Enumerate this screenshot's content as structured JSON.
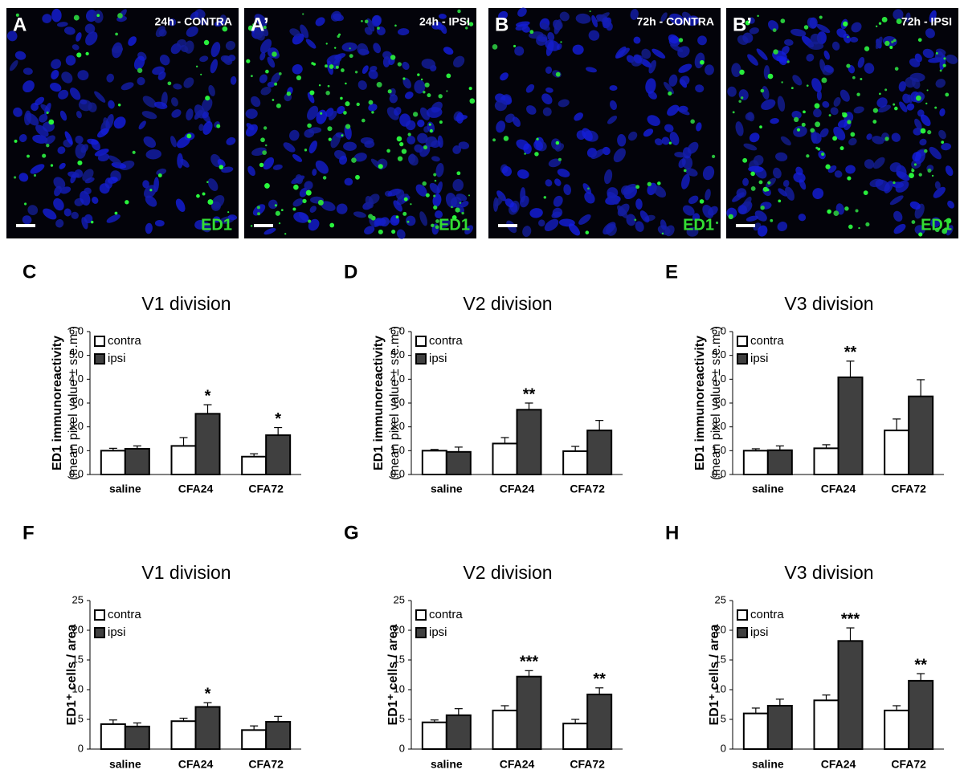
{
  "images": [
    {
      "letter": "A",
      "caption": "24h - CONTRA",
      "stain": "ED1"
    },
    {
      "letter": "A’",
      "caption": "24h - IPSI",
      "stain": "ED1"
    },
    {
      "letter": "B",
      "caption": "72h - CONTRA",
      "stain": "ED1"
    },
    {
      "letter": "B’",
      "caption": "72h - IPSI",
      "stain": "ED1"
    }
  ],
  "chart_data": [
    {
      "type": "bar",
      "letter": "C",
      "title": "V1 division",
      "ylabel": [
        "ED1 immunoreactivity",
        "(mean pixel value ± s.e.m.)"
      ],
      "categories": [
        "saline",
        "CFA24",
        "CFA72"
      ],
      "series": [
        {
          "name": "contra",
          "color": "#ffffff",
          "values": [
            1.0,
            1.2,
            0.75
          ],
          "errors": [
            0.1,
            0.35,
            0.12
          ]
        },
        {
          "name": "ipsi",
          "color": "#404040",
          "values": [
            1.08,
            2.55,
            1.65
          ],
          "errors": [
            0.12,
            0.38,
            0.32
          ],
          "annotations": [
            null,
            "*",
            "*"
          ]
        }
      ],
      "ylim": [
        0,
        6
      ],
      "yticks": [
        {
          "value": 0,
          "label": "0.0"
        },
        {
          "value": 1,
          "label": "1.0"
        },
        {
          "value": 2,
          "label": "2.0"
        },
        {
          "value": 3,
          "label": "3.0"
        },
        {
          "value": 4,
          "label": "4.0"
        },
        {
          "value": 5,
          "label": "5.0"
        },
        {
          "value": 6,
          "label": "6.0"
        }
      ]
    },
    {
      "type": "bar",
      "letter": "D",
      "title": "V2 division",
      "ylabel": [
        "ED1 immunoreactivity",
        "(mean pixel value ± s.e.m.)"
      ],
      "categories": [
        "saline",
        "CFA24",
        "CFA72"
      ],
      "series": [
        {
          "name": "contra",
          "color": "#ffffff",
          "values": [
            1.0,
            1.3,
            0.98
          ],
          "errors": [
            0.05,
            0.25,
            0.2
          ]
        },
        {
          "name": "ipsi",
          "color": "#404040",
          "values": [
            0.95,
            2.72,
            1.85
          ],
          "errors": [
            0.2,
            0.28,
            0.42
          ],
          "annotations": [
            null,
            "**",
            null
          ]
        }
      ],
      "ylim": [
        0,
        6
      ],
      "yticks": [
        {
          "value": 0,
          "label": "0.0"
        },
        {
          "value": 1,
          "label": "1.0"
        },
        {
          "value": 2,
          "label": "2.0"
        },
        {
          "value": 3,
          "label": "3.0"
        },
        {
          "value": 4,
          "label": "4.0"
        },
        {
          "value": 5,
          "label": "5.0"
        },
        {
          "value": 6,
          "label": "6.0"
        }
      ]
    },
    {
      "type": "bar",
      "letter": "E",
      "title": "V3 division",
      "ylabel": [
        "ED1 immunoreactivity",
        "(mean pixel value ± s.e.m.)"
      ],
      "categories": [
        "saline",
        "CFA24",
        "CFA72"
      ],
      "series": [
        {
          "name": "contra",
          "color": "#ffffff",
          "values": [
            1.0,
            1.1,
            1.85
          ],
          "errors": [
            0.08,
            0.15,
            0.48
          ]
        },
        {
          "name": "ipsi",
          "color": "#404040",
          "values": [
            1.02,
            4.08,
            3.28
          ],
          "errors": [
            0.18,
            0.68,
            0.7
          ],
          "annotations": [
            null,
            "**",
            null
          ]
        }
      ],
      "ylim": [
        0,
        6
      ],
      "yticks": [
        {
          "value": 0,
          "label": "0.0"
        },
        {
          "value": 1,
          "label": "1.0"
        },
        {
          "value": 2,
          "label": "2.0"
        },
        {
          "value": 3,
          "label": "3.0"
        },
        {
          "value": 4,
          "label": "4.0"
        },
        {
          "value": 5,
          "label": "5.0"
        },
        {
          "value": 6,
          "label": "6.0"
        }
      ]
    },
    {
      "type": "bar",
      "letter": "F",
      "title": "V1 division",
      "ylabel": [
        "ED1⁺ cells / area"
      ],
      "categories": [
        "saline",
        "CFA24",
        "CFA72"
      ],
      "series": [
        {
          "name": "contra",
          "color": "#ffffff",
          "values": [
            4.2,
            4.7,
            3.2
          ],
          "errors": [
            0.7,
            0.5,
            0.7
          ]
        },
        {
          "name": "ipsi",
          "color": "#404040",
          "values": [
            3.8,
            7.1,
            4.6
          ],
          "errors": [
            0.6,
            0.7,
            0.9
          ],
          "annotations": [
            null,
            "*",
            null
          ]
        }
      ],
      "ylim": [
        0,
        25
      ],
      "yticks": [
        0,
        5,
        10,
        15,
        20,
        25
      ]
    },
    {
      "type": "bar",
      "letter": "G",
      "title": "V2 division",
      "ylabel": [
        "ED1⁺ cells / area"
      ],
      "categories": [
        "saline",
        "CFA24",
        "CFA72"
      ],
      "series": [
        {
          "name": "contra",
          "color": "#ffffff",
          "values": [
            4.5,
            6.5,
            4.3
          ],
          "errors": [
            0.4,
            0.8,
            0.7
          ]
        },
        {
          "name": "ipsi",
          "color": "#404040",
          "values": [
            5.7,
            12.2,
            9.2
          ],
          "errors": [
            1.1,
            1.0,
            1.1
          ],
          "annotations": [
            null,
            "***",
            "**"
          ]
        }
      ],
      "ylim": [
        0,
        25
      ],
      "yticks": [
        0,
        5,
        10,
        15,
        20,
        25
      ]
    },
    {
      "type": "bar",
      "letter": "H",
      "title": "V3 division",
      "ylabel": [
        "ED1⁺ cells / area"
      ],
      "categories": [
        "saline",
        "CFA24",
        "CFA72"
      ],
      "series": [
        {
          "name": "contra",
          "color": "#ffffff",
          "values": [
            6.0,
            8.2,
            6.5
          ],
          "errors": [
            0.9,
            0.9,
            0.8
          ]
        },
        {
          "name": "ipsi",
          "color": "#404040",
          "values": [
            7.3,
            18.2,
            11.5
          ],
          "errors": [
            1.1,
            2.2,
            1.2
          ],
          "annotations": [
            null,
            "***",
            "**"
          ]
        }
      ],
      "ylim": [
        0,
        25
      ],
      "yticks": [
        0,
        5,
        10,
        15,
        20,
        25
      ]
    }
  ]
}
